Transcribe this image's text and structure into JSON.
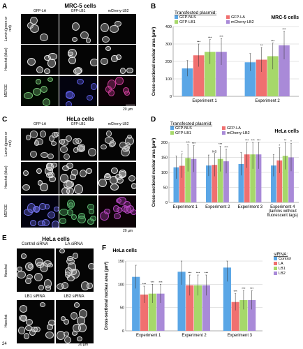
{
  "panels": {
    "A": {
      "label": "A",
      "title": "MRC-5 cells",
      "columns": [
        "GFP-LA",
        "GFP-LB1",
        "mCherry-LB2"
      ],
      "rows": [
        "Lamin\n(green or red)",
        "Hoechst\n(blue)",
        "MERGE"
      ],
      "scale": "20 µm"
    },
    "C": {
      "label": "C",
      "title": "HeLa cells",
      "columns": [
        "GFP-LA",
        "GFP-LB1",
        "mCherry-LB2"
      ],
      "rows": [
        "Lamin\n(green or red)",
        "Hoechst\n(blue)",
        "MERGE"
      ],
      "scale": "20 µm"
    },
    "E": {
      "label": "E",
      "title": "HeLa cells",
      "columns": [
        "Control siRNA",
        "LA siRNA",
        "LB1 siRNA",
        "LB2 siRNA"
      ],
      "rows": [
        "Hoechst",
        "Hoechst"
      ],
      "scale": "20 µm"
    }
  },
  "page_number": "24",
  "chart_data": [
    {
      "panel": "B",
      "type": "bar",
      "title": "MRC-5 cells",
      "legend_title": "Transfected plasmid:",
      "categories": [
        "Experiment 1",
        "Experiment 2"
      ],
      "series": [
        {
          "name": "GFP-NLS",
          "color": "#5aa6e6",
          "values": [
            160,
            195
          ],
          "err": [
            45,
            50
          ],
          "sig": [
            "",
            ""
          ]
        },
        {
          "name": "GFP-LA",
          "color": "#f07070",
          "values": [
            235,
            210
          ],
          "err": [
            65,
            70
          ],
          "sig": [
            "***",
            "**"
          ]
        },
        {
          "name": "GFP-LB1",
          "color": "#a6d86a",
          "values": [
            255,
            230
          ],
          "err": [
            70,
            75
          ],
          "sig": [
            "***",
            "***"
          ]
        },
        {
          "name": "mCherry-LB2",
          "color": "#a98ad8",
          "values": [
            255,
            292
          ],
          "err": [
            75,
            80
          ],
          "sig": [
            "***",
            "***"
          ]
        }
      ],
      "ylabel": "Cross-sectional nuclear area (µm²)",
      "ylim": [
        0,
        400
      ],
      "yticks": [
        0,
        100,
        200,
        300,
        400
      ],
      "grid": true,
      "legend": "top"
    },
    {
      "panel": "D",
      "type": "bar",
      "title": "HeLa cells",
      "legend_title": "Transfected plasmid:",
      "categories": [
        "Experiment 1",
        "Experiment 2",
        "Experiment 3",
        "Experiment 4\n(lamins without\nfluorescent tags)"
      ],
      "series": [
        {
          "name": "GFP-NLS",
          "color": "#5aa6e6",
          "values": [
            117,
            123,
            128,
            123
          ],
          "err": [
            38,
            35,
            38,
            36
          ],
          "sig": [
            "",
            "",
            "",
            ""
          ]
        },
        {
          "name": "GFP-LA",
          "color": "#f07070",
          "values": [
            122,
            125,
            160,
            140
          ],
          "err": [
            40,
            38,
            45,
            42
          ],
          "sig": [
            "*",
            "NS",
            "***",
            "*"
          ]
        },
        {
          "name": "GFP-LB1",
          "color": "#a6d86a",
          "values": [
            148,
            145,
            160,
            155
          ],
          "err": [
            45,
            42,
            48,
            45
          ],
          "sig": [
            "***",
            "***",
            "***",
            "**"
          ]
        },
        {
          "name": "mCherry-LB2",
          "color": "#a98ad8",
          "values": [
            145,
            137,
            160,
            150
          ],
          "err": [
            44,
            40,
            48,
            46
          ],
          "sig": [
            "***",
            "***",
            "***",
            "*"
          ]
        }
      ],
      "ylabel": "Cross-sectional nuclear area (µm²)",
      "ylim": [
        0,
        200
      ],
      "yticks": [
        0,
        50,
        100,
        150,
        200
      ],
      "grid": true,
      "legend": "top"
    },
    {
      "panel": "F",
      "type": "bar",
      "title": "HeLa cells",
      "legend_title": "siRNA:",
      "categories": [
        "Experiment 1",
        "Experiment 2",
        "Experiment 3"
      ],
      "series": [
        {
          "name": "Control",
          "color": "#5aa6e6",
          "values": [
            116,
            127,
            136
          ],
          "err": [
            25,
            28,
            30
          ],
          "sig": [
            "",
            "",
            ""
          ]
        },
        {
          "name": "LA",
          "color": "#f07070",
          "values": [
            78,
            98,
            62
          ],
          "err": [
            18,
            22,
            18
          ],
          "sig": [
            "***",
            "***",
            "***"
          ]
        },
        {
          "name": "LB1",
          "color": "#a6d86a",
          "values": [
            80,
            98,
            66
          ],
          "err": [
            20,
            22,
            20
          ],
          "sig": [
            "***",
            "***",
            "***"
          ]
        },
        {
          "name": "LB2",
          "color": "#a98ad8",
          "values": [
            80,
            98,
            66
          ],
          "err": [
            20,
            22,
            20
          ],
          "sig": [
            "***",
            "***",
            "***"
          ]
        }
      ],
      "ylabel": "Cross-sectional nuclear area (µm²)",
      "ylim": [
        0,
        150
      ],
      "yticks": [
        0,
        50,
        100,
        150
      ],
      "grid": true,
      "legend": "top-right"
    }
  ]
}
